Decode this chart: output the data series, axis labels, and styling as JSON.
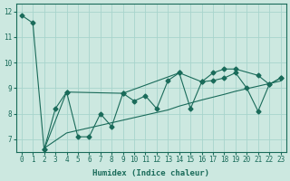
{
  "xlabel": "Humidex (Indice chaleur)",
  "bg_color": "#cce8e0",
  "grid_color": "#a8d4cc",
  "line_color": "#1a6b5a",
  "xlim": [
    -0.5,
    23.5
  ],
  "ylim": [
    6.5,
    12.3
  ],
  "yticks": [
    7,
    8,
    9,
    10,
    11,
    12
  ],
  "xticks": [
    0,
    1,
    2,
    3,
    4,
    5,
    6,
    7,
    8,
    9,
    10,
    11,
    12,
    13,
    14,
    15,
    16,
    17,
    18,
    19,
    20,
    21,
    22,
    23
  ],
  "line1_x": [
    0,
    1,
    2,
    4,
    9,
    14,
    16,
    17,
    18,
    19,
    21,
    22,
    23
  ],
  "line1_y": [
    11.85,
    11.55,
    6.6,
    8.85,
    8.8,
    9.6,
    9.25,
    9.6,
    9.75,
    9.75,
    9.5,
    9.15,
    9.4
  ],
  "line2_x": [
    2,
    3,
    4,
    5,
    6,
    7,
    8,
    9,
    10,
    11,
    12,
    13,
    14,
    15,
    16,
    17,
    18,
    19,
    20,
    21,
    22,
    23
  ],
  "line2_y": [
    6.65,
    6.95,
    7.25,
    7.35,
    7.45,
    7.55,
    7.65,
    7.75,
    7.85,
    7.95,
    8.05,
    8.15,
    8.3,
    8.42,
    8.54,
    8.65,
    8.76,
    8.88,
    8.98,
    9.08,
    9.18,
    9.28
  ],
  "line3_x": [
    2,
    3,
    4,
    5,
    6,
    7,
    8,
    9,
    10,
    11,
    12,
    13,
    14,
    15,
    16,
    17,
    18,
    19,
    20,
    21,
    22,
    23
  ],
  "line3_y": [
    6.6,
    8.2,
    8.85,
    7.1,
    7.1,
    8.0,
    7.5,
    8.8,
    8.5,
    8.7,
    8.2,
    9.3,
    9.6,
    8.2,
    9.25,
    9.3,
    9.4,
    9.6,
    9.0,
    8.1,
    9.15,
    9.4
  ]
}
